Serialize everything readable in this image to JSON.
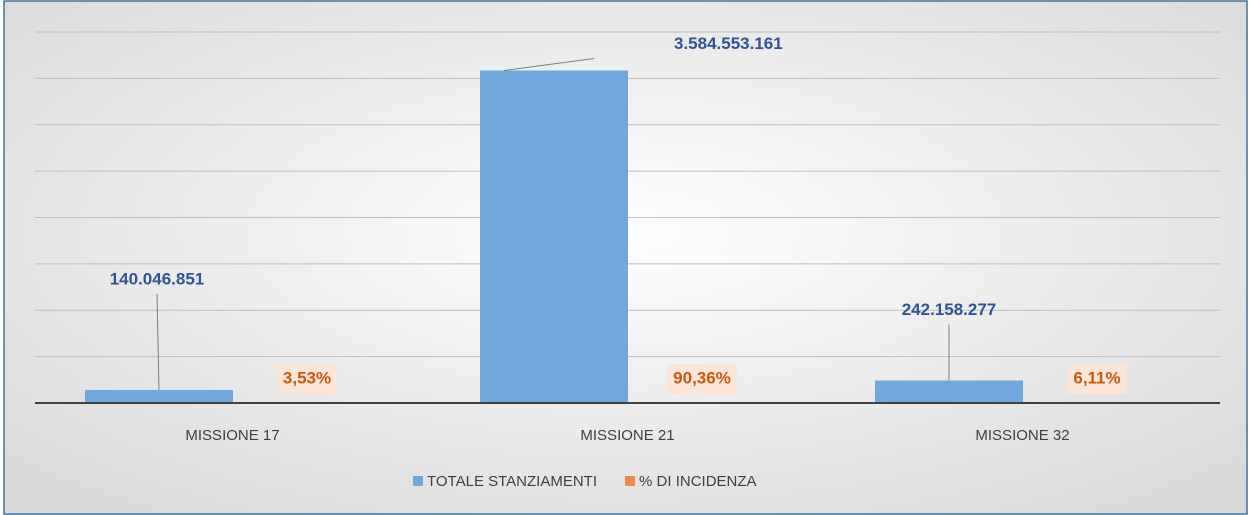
{
  "chart_data": {
    "type": "bar",
    "categories": [
      "MISSIONE 17",
      "MISSIONE 21",
      "MISSIONE 32"
    ],
    "series": [
      {
        "name": "TOTALE STANZIAMENTI",
        "color": "#6fa8dc",
        "values": [
          140046851,
          3584553161,
          242158277
        ],
        "value_labels": [
          "140.046.851",
          "3.584.553.161",
          "242.158.277"
        ]
      },
      {
        "name": "% DI INCIDENZA",
        "color": "#f08a4b",
        "values": [
          3.53,
          90.36,
          6.11
        ],
        "value_labels": [
          "3,53%",
          "90,36%",
          "6,11%"
        ]
      }
    ],
    "ylim": [
      0,
      4000000000
    ],
    "yticks": [
      0,
      500000000,
      1000000000,
      1500000000,
      2000000000,
      2500000000,
      3000000000,
      3500000000,
      4000000000
    ],
    "grid": true,
    "legend": "bottom"
  }
}
